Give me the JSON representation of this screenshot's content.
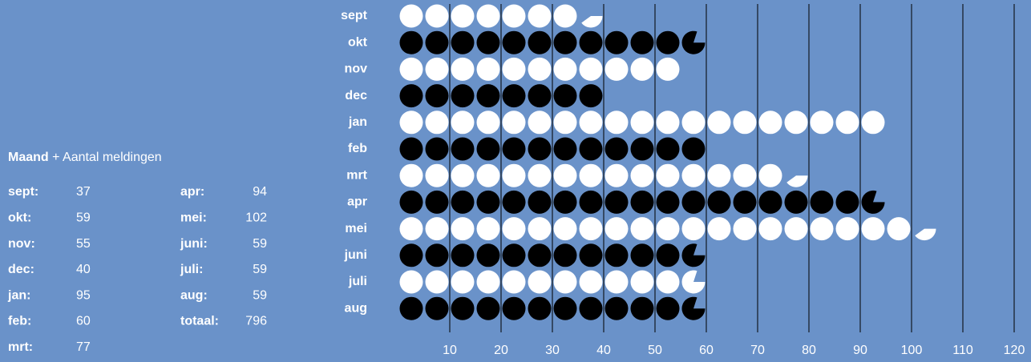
{
  "chart_data": {
    "type": "pictogram",
    "categories": [
      "sept",
      "okt",
      "nov",
      "dec",
      "jan",
      "feb",
      "mrt",
      "apr",
      "mei",
      "juni",
      "juli",
      "aug"
    ],
    "values": [
      37,
      59,
      55,
      40,
      95,
      60,
      77,
      94,
      102,
      59,
      59,
      59
    ],
    "colors": [
      "#ffffff",
      "#000000",
      "#ffffff",
      "#000000",
      "#ffffff",
      "#000000",
      "#ffffff",
      "#000000",
      "#ffffff",
      "#000000",
      "#ffffff",
      "#000000"
    ],
    "unit_per_icon": 5,
    "xlim": [
      0,
      120
    ],
    "xticks": [
      10,
      20,
      30,
      40,
      50,
      60,
      70,
      80,
      90,
      100,
      110,
      120
    ],
    "grid": true
  },
  "table": {
    "title_bold": "Maand",
    "title_rest": "+ Aantal meldingen",
    "rows": [
      [
        "sept:",
        "37"
      ],
      [
        "okt:",
        "59"
      ],
      [
        "nov:",
        "55"
      ],
      [
        "dec:",
        "40"
      ],
      [
        "jan:",
        "95"
      ],
      [
        "feb:",
        "60"
      ],
      [
        "mrt:",
        "77"
      ],
      [
        "apr:",
        "94"
      ],
      [
        "mei:",
        "102"
      ],
      [
        "juni:",
        "59"
      ],
      [
        "juli:",
        "59"
      ],
      [
        "aug:",
        "59"
      ],
      [
        "totaal:",
        "796"
      ]
    ]
  }
}
